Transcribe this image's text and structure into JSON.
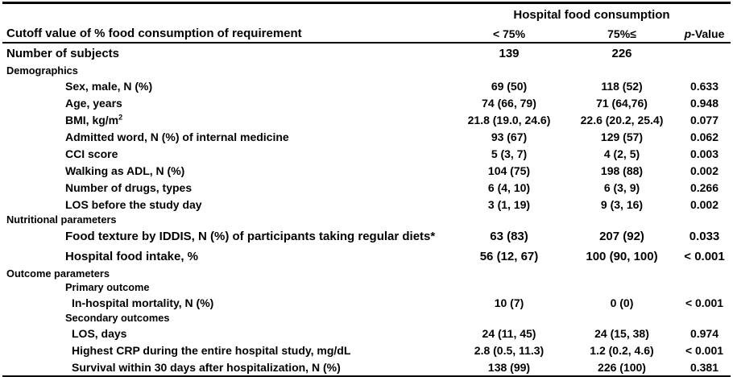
{
  "table": {
    "group_header": "Hospital food consumption",
    "row_header": "Cutoff value of % food consumption of requirement",
    "col1_header": "< 75%",
    "col2_header": "75%≤",
    "p_header_italic": "p",
    "p_header_rest": "-Value",
    "rows": [
      {
        "label": "Number of subjects",
        "indent": 0,
        "size": "lg",
        "c1": "139",
        "c2": "226"
      },
      {
        "label": "Demographics",
        "indent": 0,
        "section": true
      },
      {
        "label": "Sex, male, N (%)",
        "indent": 1,
        "c1": "69 (50)",
        "c2": "118 (52)",
        "p": "0.633"
      },
      {
        "label": "Age, years",
        "indent": 1,
        "c1": "74 (66, 79)",
        "c2": "71 (64,76)",
        "p": "0.948"
      },
      {
        "label": "BMI, kg/m",
        "label_sup": "2",
        "indent": 1,
        "c1": "21.8 (19.0, 24.6)",
        "c2": "22.6 (20.2, 25.4)",
        "p": "0.077"
      },
      {
        "label": "Admitted word, N (%) of internal medicine",
        "indent": 1,
        "c1": "93 (67)",
        "c2": "129 (57)",
        "p": "0.062"
      },
      {
        "label": "CCI score",
        "indent": 1,
        "c1": "5 (3, 7)",
        "c2": "4 (2, 5)",
        "p": "0.003"
      },
      {
        "label": "Walking as ADL, N (%)",
        "indent": 1,
        "c1": "104 (75)",
        "c2": "198 (88)",
        "p": "0.002"
      },
      {
        "label": "Number of drugs, types",
        "indent": 1,
        "c1": "6 (4, 10)",
        "c2": "6 (3, 9)",
        "p": "0.266"
      },
      {
        "label": "LOS before the study day",
        "indent": 1,
        "c1": "3 (1, 19)",
        "c2": "9 (3, 16)",
        "p": "0.002"
      },
      {
        "label": "Nutritional parameters",
        "indent": 0,
        "section": true
      },
      {
        "label": "Food texture by IDDIS, N (%) of participants  taking regular diets*",
        "indent": 1,
        "size": "lg",
        "c1": "63 (83)",
        "c2": "207 (92)",
        "p": "0.033"
      },
      {
        "label": "Hospital food intake, %",
        "indent": 1,
        "size": "lg",
        "c1": "56 (12, 67)",
        "c2": "100 (90, 100)",
        "p": "< 0.001"
      },
      {
        "label": "Outcome parameters",
        "indent": 0,
        "section": true
      },
      {
        "label": "Primary outcome",
        "indent": 1,
        "section": true
      },
      {
        "label": "In-hospital mortality, N (%)",
        "indent": 2,
        "c1": "10 (7)",
        "c2": "0 (0)",
        "p": "< 0.001"
      },
      {
        "label": "Secondary outcomes",
        "indent": 1,
        "section": true
      },
      {
        "label": "LOS, days",
        "indent": 2,
        "c1": "24 (11, 45)",
        "c2": "24 (15, 38)",
        "p": "0.974"
      },
      {
        "label": "Highest CRP during the entire hospital study, mg/dL",
        "indent": 2,
        "c1": "2.8 (0.5, 11.3)",
        "c2": "1.2 (0.2, 4.6)",
        "p": "< 0.001"
      },
      {
        "label": "Survival within 30 days after hospitalization, N (%)",
        "indent": 2,
        "c1": "138 (99)",
        "c2": "226 (100)",
        "p": "0.381"
      }
    ]
  },
  "colors": {
    "text": "#000000",
    "rule": "#000000",
    "background": "#ffffff"
  }
}
